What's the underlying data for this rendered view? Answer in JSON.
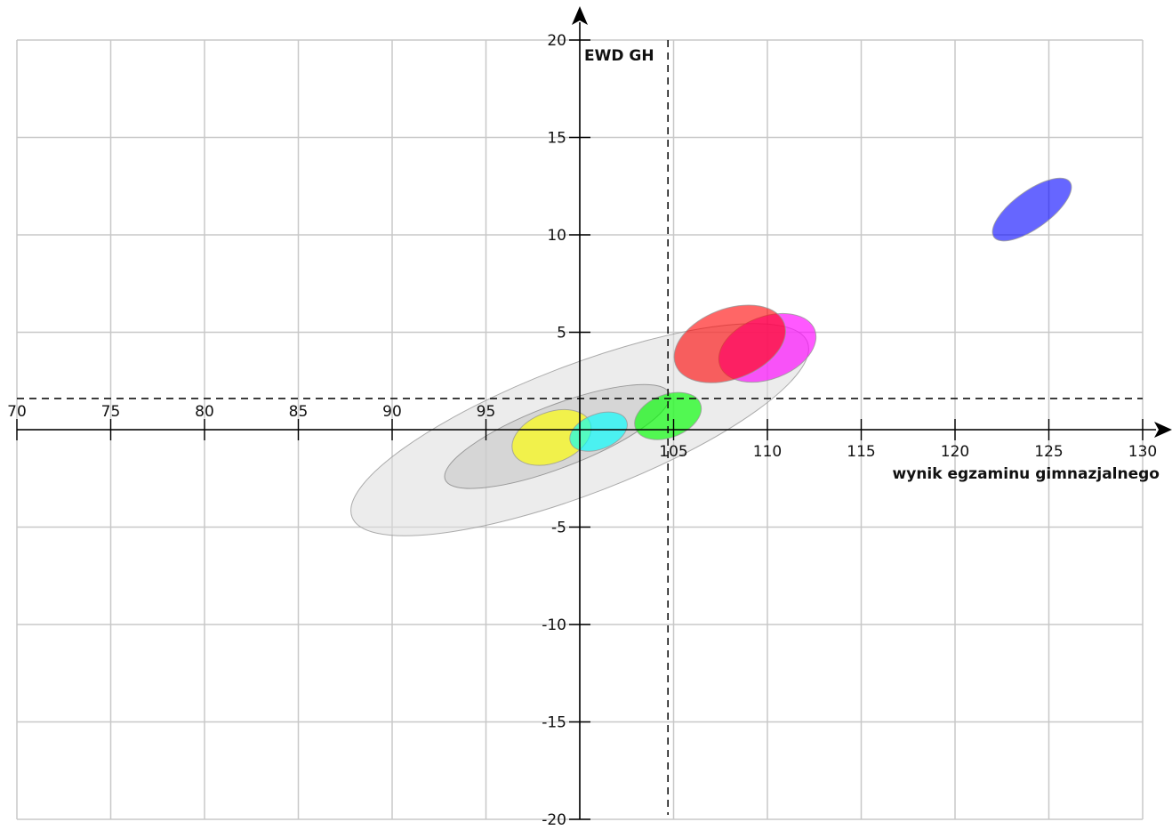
{
  "chart_data": {
    "type": "scatter",
    "title": "",
    "xlabel": "wynik egzaminu gimnazjalnego",
    "ylabel": "EWD GH",
    "xlim": [
      70,
      130
    ],
    "ylim": [
      -20,
      20
    ],
    "x_ticks": [
      70,
      75,
      80,
      85,
      90,
      95,
      105,
      110,
      115,
      120,
      125,
      130
    ],
    "y_ticks": [
      20,
      15,
      10,
      5,
      -5,
      -10,
      -15,
      -20
    ],
    "grid": true,
    "reference_lines": {
      "x": 104.7,
      "y": 1.6
    },
    "ellipses": [
      {
        "cx": 100,
        "cy": 0.0,
        "rx": 13.0,
        "ry": 3.3,
        "angle_deg": 21,
        "color": "#dcdcdc",
        "opacity": 0.55,
        "stroke": "#999999"
      },
      {
        "cx": 98.8,
        "cy": -0.35,
        "rx": 6.4,
        "ry": 1.6,
        "angle_deg": 21,
        "color": "#c4c4c4",
        "opacity": 0.55,
        "stroke": "#888888"
      },
      {
        "cx": 98.5,
        "cy": -0.4,
        "rx": 2.2,
        "ry": 1.3,
        "angle_deg": 21,
        "color": "#ffff00",
        "opacity": 0.65,
        "stroke": "#999999"
      },
      {
        "cx": 101.0,
        "cy": -0.1,
        "rx": 1.6,
        "ry": 0.9,
        "angle_deg": 21,
        "color": "#00ffff",
        "opacity": 0.65,
        "stroke": "#999999"
      },
      {
        "cx": 104.7,
        "cy": 0.7,
        "rx": 1.85,
        "ry": 1.1,
        "angle_deg": 21,
        "color": "#00ff00",
        "opacity": 0.65,
        "stroke": "#999999"
      },
      {
        "cx": 110.0,
        "cy": 4.2,
        "rx": 2.7,
        "ry": 1.6,
        "angle_deg": 21,
        "color": "#ff00ff",
        "opacity": 0.65,
        "stroke": "#999999"
      },
      {
        "cx": 108.0,
        "cy": 4.4,
        "rx": 3.1,
        "ry": 1.8,
        "angle_deg": 21,
        "color": "#ff0000",
        "opacity": 0.6,
        "stroke": "#999999"
      },
      {
        "cx": 124.1,
        "cy": 11.3,
        "rx": 2.5,
        "ry": 0.95,
        "angle_deg": 36,
        "color": "#0000ff",
        "opacity": 0.6,
        "stroke": "#999999"
      }
    ]
  }
}
